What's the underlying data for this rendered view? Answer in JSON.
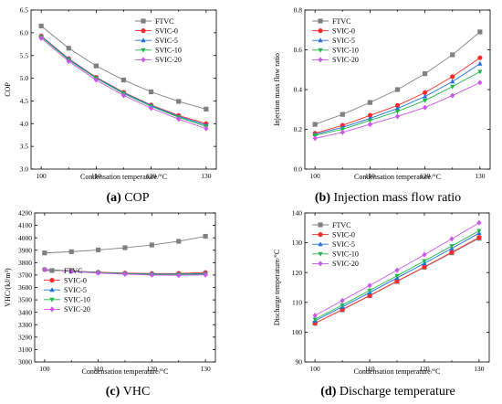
{
  "colors": {
    "FTVC": "#808080",
    "SVIC-0": "#ff2a2a",
    "SVIC-5": "#1f6fe0",
    "SVIC-10": "#1fb84a",
    "SVIC-20": "#cc55ee"
  },
  "markers": {
    "FTVC": "square",
    "SVIC-0": "circle",
    "SVIC-5": "triangle-up",
    "SVIC-10": "triangle-down",
    "SVIC-20": "diamond"
  },
  "chart_data": [
    {
      "type": "line",
      "panel_letter": "(a)",
      "caption": "COP",
      "xlabel": "Condensation temperature/°C",
      "ylabel": "COP",
      "x": [
        100,
        105,
        110,
        115,
        120,
        125,
        130
      ],
      "xticks": [
        100,
        110,
        120,
        130
      ],
      "ylim": [
        3.0,
        6.5
      ],
      "yticks": [
        "3.0",
        "3.5",
        "4.0",
        "4.5",
        "5.0",
        "5.5",
        "6.0",
        "6.5"
      ],
      "legend_position": "top-right",
      "series": [
        {
          "name": "FTVC",
          "values": [
            6.15,
            5.66,
            5.27,
            4.96,
            4.7,
            4.49,
            4.32
          ]
        },
        {
          "name": "SVIC-0",
          "values": [
            5.93,
            5.43,
            5.02,
            4.69,
            4.41,
            4.18,
            4.0
          ]
        },
        {
          "name": "SVIC-5",
          "values": [
            5.92,
            5.42,
            5.01,
            4.68,
            4.4,
            4.16,
            3.97
          ]
        },
        {
          "name": "SVIC-10",
          "values": [
            5.91,
            5.4,
            5.0,
            4.66,
            4.38,
            4.14,
            3.94
          ]
        },
        {
          "name": "SVIC-20",
          "values": [
            5.88,
            5.37,
            4.96,
            4.62,
            4.34,
            4.1,
            3.89
          ]
        }
      ]
    },
    {
      "type": "line",
      "panel_letter": "(b)",
      "caption": "Injection mass flow ratio",
      "xlabel": "Condensation temperature/°C",
      "ylabel": "Injection mass flow ratio",
      "x": [
        100,
        105,
        110,
        115,
        120,
        125,
        130
      ],
      "xticks": [
        100,
        110,
        120,
        130
      ],
      "ylim": [
        0.0,
        0.8
      ],
      "yticks": [
        "0.0",
        "0.2",
        "0.4",
        "0.6",
        "0.8"
      ],
      "legend_position": "top-left",
      "series": [
        {
          "name": "FTVC",
          "values": [
            0.225,
            0.275,
            0.335,
            0.4,
            0.48,
            0.575,
            0.69
          ]
        },
        {
          "name": "SVIC-0",
          "values": [
            0.18,
            0.22,
            0.27,
            0.32,
            0.385,
            0.465,
            0.56
          ]
        },
        {
          "name": "SVIC-5",
          "values": [
            0.175,
            0.21,
            0.255,
            0.305,
            0.365,
            0.44,
            0.53
          ]
        },
        {
          "name": "SVIC-10",
          "values": [
            0.17,
            0.2,
            0.245,
            0.29,
            0.345,
            0.415,
            0.49
          ]
        },
        {
          "name": "SVIC-20",
          "values": [
            0.155,
            0.185,
            0.225,
            0.265,
            0.31,
            0.37,
            0.435
          ]
        }
      ]
    },
    {
      "type": "line",
      "panel_letter": "(c)",
      "caption": "VHC",
      "xlabel": "Condensation temperature/°C",
      "ylabel": "VHC/(kJ/m³)",
      "x": [
        100,
        105,
        110,
        115,
        120,
        125,
        130
      ],
      "xticks": [
        100,
        110,
        120,
        130
      ],
      "ylim": [
        3000,
        4200
      ],
      "yticks": [
        "3000",
        "3100",
        "3200",
        "3300",
        "3400",
        "3500",
        "3600",
        "3700",
        "3800",
        "3900",
        "4000",
        "4100",
        "4200"
      ],
      "legend_position": "center-left",
      "series": [
        {
          "name": "FTVC",
          "values": [
            3878,
            3888,
            3902,
            3920,
            3942,
            3972,
            4012
          ]
        },
        {
          "name": "SVIC-0",
          "values": [
            3745,
            3733,
            3723,
            3716,
            3712,
            3713,
            3720
          ]
        },
        {
          "name": "SVIC-5",
          "values": [
            3745,
            3732,
            3721,
            3713,
            3708,
            3708,
            3713
          ]
        },
        {
          "name": "SVIC-10",
          "values": [
            3745,
            3731,
            3719,
            3711,
            3705,
            3704,
            3708
          ]
        },
        {
          "name": "SVIC-20",
          "values": [
            3744,
            3729,
            3716,
            3707,
            3700,
            3698,
            3701
          ]
        }
      ]
    },
    {
      "type": "line",
      "panel_letter": "(d)",
      "caption": "Discharge temperature",
      "xlabel": "Condensation temperature/°C",
      "ylabel": "Discharge temperature/°C",
      "x": [
        100,
        105,
        110,
        115,
        120,
        125,
        130
      ],
      "xticks": [
        100,
        110,
        120,
        130
      ],
      "ylim": [
        90,
        140
      ],
      "yticks": [
        "90",
        "100",
        "110",
        "120",
        "130",
        "140"
      ],
      "legend_position": "top-left",
      "series": [
        {
          "name": "FTVC",
          "values": [
            103.0,
            107.5,
            112.2,
            117.0,
            121.8,
            126.6,
            131.5
          ]
        },
        {
          "name": "SVIC-0",
          "values": [
            103.0,
            107.6,
            112.3,
            117.1,
            121.9,
            126.8,
            131.8
          ]
        },
        {
          "name": "SVIC-5",
          "values": [
            103.8,
            108.5,
            113.3,
            118.2,
            123.1,
            128.1,
            133.2
          ]
        },
        {
          "name": "SVIC-10",
          "values": [
            104.3,
            109.1,
            114.0,
            118.9,
            123.9,
            128.9,
            134.0
          ]
        },
        {
          "name": "SVIC-20",
          "values": [
            105.6,
            110.6,
            115.7,
            120.8,
            126.0,
            131.3,
            136.7
          ]
        }
      ]
    }
  ]
}
